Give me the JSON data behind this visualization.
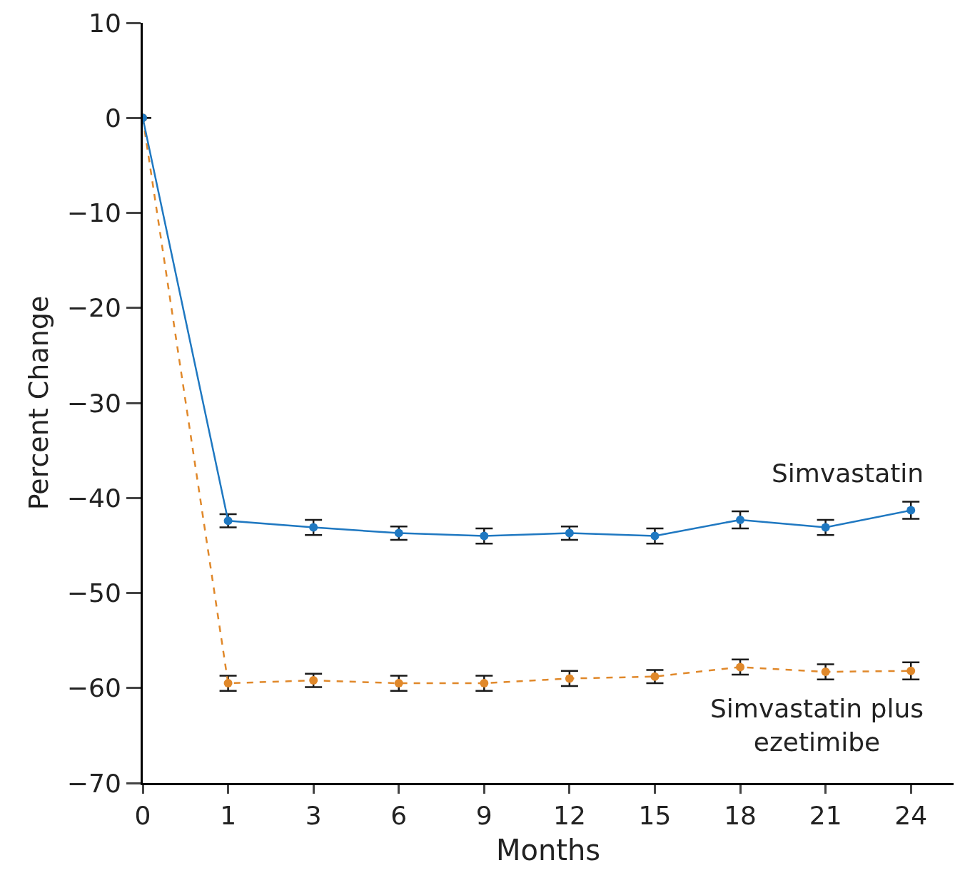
{
  "chart_data": {
    "type": "line",
    "xlabel": "Months",
    "ylabel": "Percent Change",
    "categories": [
      "0",
      "1",
      "3",
      "6",
      "9",
      "12",
      "15",
      "18",
      "21",
      "24"
    ],
    "ylim": [
      -70,
      10
    ],
    "yticks": [
      {
        "value": 10,
        "label": "10"
      },
      {
        "value": 0,
        "label": "0"
      },
      {
        "value": -10,
        "label": "−10"
      },
      {
        "value": -20,
        "label": "−20"
      },
      {
        "value": -30,
        "label": "−30"
      },
      {
        "value": -40,
        "label": "−40"
      },
      {
        "value": -50,
        "label": "−50"
      },
      {
        "value": -60,
        "label": "−60"
      },
      {
        "value": -70,
        "label": "−70"
      }
    ],
    "legend": false,
    "marker": "circle",
    "series": [
      {
        "name": "Simvastatin",
        "color": "#1f78c1",
        "line_style": "solid",
        "values": [
          0,
          -42.4,
          -43.1,
          -43.7,
          -44.0,
          -43.7,
          -44.0,
          -42.3,
          -43.1,
          -41.3
        ],
        "errors": [
          null,
          0.7,
          0.8,
          0.7,
          0.8,
          0.7,
          0.8,
          0.9,
          0.8,
          0.9
        ]
      },
      {
        "name": "Simvastatin plus ezetimibe",
        "color": "#e0882a",
        "line_style": "dashed",
        "values": [
          0,
          -59.5,
          -59.2,
          -59.5,
          -59.5,
          -59.0,
          -58.8,
          -57.8,
          -58.3,
          -58.2
        ],
        "errors": [
          null,
          0.8,
          0.7,
          0.8,
          0.8,
          0.8,
          0.7,
          0.8,
          0.8,
          0.9
        ]
      }
    ]
  }
}
